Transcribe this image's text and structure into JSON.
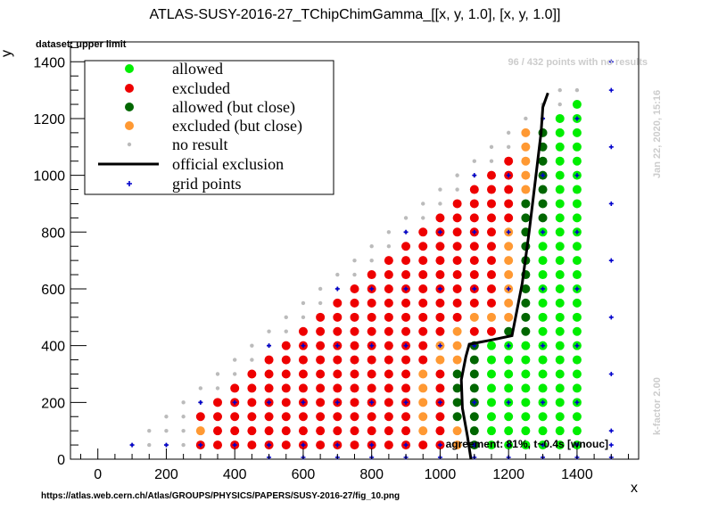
{
  "chart_data": {
    "type": "scatter",
    "title": "ATLAS-SUSY-2016-27_TChipChimGamma_[[x, y, 1.0], [x, y, 1.0]]",
    "subtitle": "dataset: upper limit",
    "xlabel": "x",
    "ylabel": "y",
    "xlim": [
      -80,
      1580
    ],
    "ylim": [
      0,
      1470
    ],
    "x_ticks": [
      0,
      200,
      400,
      600,
      800,
      1000,
      1200,
      1400
    ],
    "y_ticks": [
      0,
      200,
      400,
      600,
      800,
      1000,
      1200,
      1400
    ],
    "legend_placement": "top-left",
    "legend": [
      {
        "label": "allowed",
        "color": "#00ee00",
        "kind": "dot"
      },
      {
        "label": "excluded",
        "color": "#ee0000",
        "kind": "dot"
      },
      {
        "label": "allowed (but close)",
        "color": "#006600",
        "kind": "dot"
      },
      {
        "label": "excluded (but close)",
        "color": "#ff9933",
        "kind": "dot"
      },
      {
        "label": "no result",
        "color": "#bbbbbb",
        "kind": "smalldot"
      },
      {
        "label": "official exclusion",
        "color": "#000000",
        "kind": "line"
      },
      {
        "label": "grid points",
        "color": "#0000cc",
        "kind": "cross"
      }
    ],
    "note_points": "96 / 432 points with no results",
    "timestamp": "Jan 22, 2020, 15:16",
    "kfactor": "k-factor 2.00",
    "agreement": "agreement: 81%, t~0.4s [wnouc]",
    "source_url": "https://atlas.web.cern.ch/Atlas/GROUPS/PHYSICS/PAPERS/SUSY-2016-27/fig_10.png",
    "official_exclusion": [
      [
        1090,
        0
      ],
      [
        1080,
        80
      ],
      [
        1065,
        180
      ],
      [
        1062,
        280
      ],
      [
        1075,
        360
      ],
      [
        1085,
        405
      ],
      [
        1150,
        420
      ],
      [
        1210,
        435
      ],
      [
        1240,
        620
      ],
      [
        1260,
        800
      ],
      [
        1280,
        1000
      ],
      [
        1295,
        1150
      ],
      [
        1300,
        1240
      ],
      [
        1315,
        1290
      ]
    ],
    "colors": {
      "allowed": "#00ee00",
      "excluded": "#ee0000",
      "allowed_close": "#006600",
      "excluded_close": "#ff9933",
      "no_result": "#bbbbbb",
      "grid": "#0000cc",
      "exclusion_line": "#000000"
    }
  }
}
